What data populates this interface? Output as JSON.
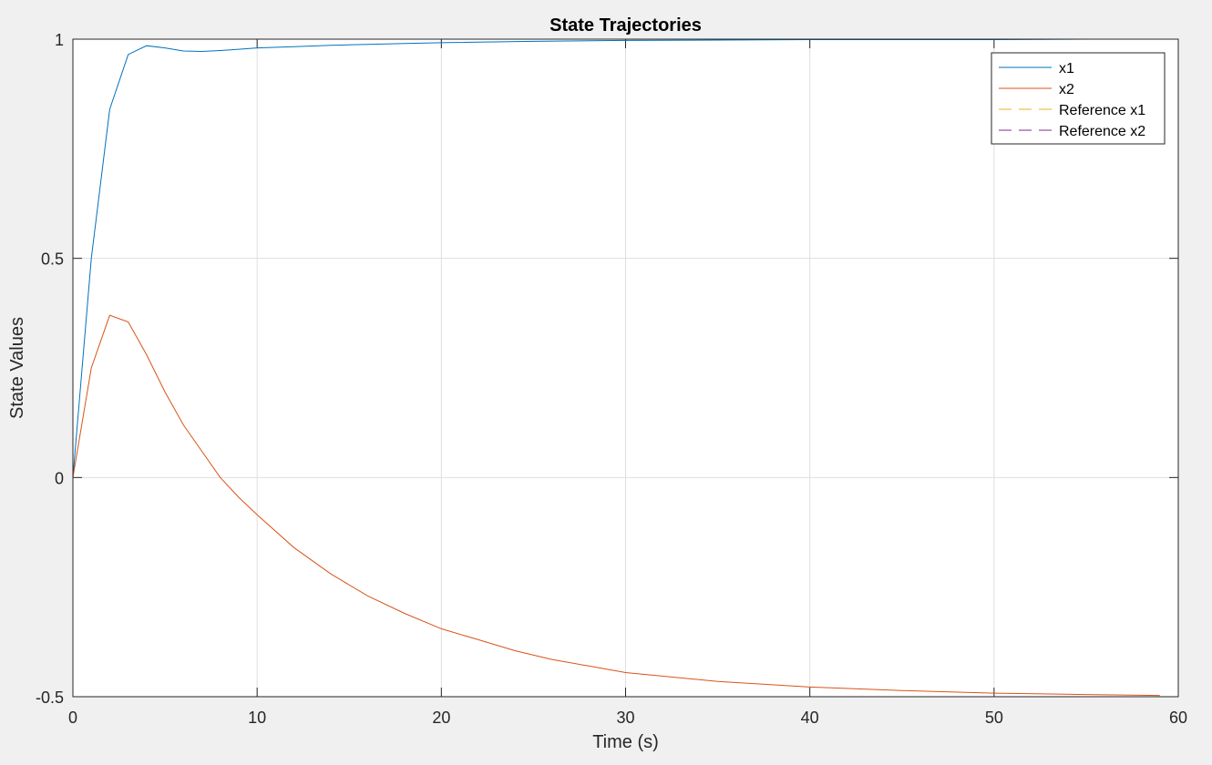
{
  "chart_data": {
    "type": "line",
    "title": "State Trajectories",
    "xlabel": "Time (s)",
    "ylabel": "State Values",
    "xlim": [
      0,
      60
    ],
    "ylim": [
      -0.5,
      1
    ],
    "xticks": [
      0,
      10,
      20,
      30,
      40,
      50,
      60
    ],
    "xtick_labels": [
      "0",
      "10",
      "20",
      "30",
      "40",
      "50",
      "60"
    ],
    "yticks": [
      -0.5,
      0,
      0.5,
      1
    ],
    "ytick_labels": [
      "-0.5",
      "0",
      "0.5",
      "1"
    ],
    "grid": true,
    "legend_position": "top-right",
    "series": [
      {
        "name": "x1",
        "color": "#0072bd",
        "style": "solid",
        "x": [
          0,
          1,
          2,
          3,
          4,
          5,
          6,
          7,
          8,
          9,
          10,
          12,
          14,
          16,
          18,
          20,
          25,
          30,
          35,
          40,
          45,
          50,
          55,
          59
        ],
        "y": [
          0,
          0.5,
          0.84,
          0.965,
          0.985,
          0.98,
          0.973,
          0.972,
          0.974,
          0.977,
          0.98,
          0.983,
          0.986,
          0.988,
          0.99,
          0.992,
          0.995,
          0.997,
          0.998,
          0.999,
          0.999,
          0.999,
          1.0,
          1.0
        ]
      },
      {
        "name": "x2",
        "color": "#d95319",
        "style": "solid",
        "x": [
          0,
          1,
          2,
          3,
          4,
          5,
          6,
          7,
          8,
          9,
          10,
          12,
          14,
          16,
          18,
          20,
          22,
          24,
          26,
          28,
          30,
          35,
          40,
          45,
          50,
          55,
          59
        ],
        "y": [
          0,
          0.25,
          0.37,
          0.355,
          0.28,
          0.195,
          0.12,
          0.06,
          0.0,
          -0.045,
          -0.085,
          -0.16,
          -0.22,
          -0.27,
          -0.31,
          -0.345,
          -0.37,
          -0.395,
          -0.415,
          -0.43,
          -0.445,
          -0.465,
          -0.478,
          -0.486,
          -0.492,
          -0.495,
          -0.497
        ]
      },
      {
        "name": "Reference x1",
        "color": "#edb120",
        "style": "dashed",
        "x": [
          0,
          59
        ],
        "y": [
          1,
          1
        ]
      },
      {
        "name": "Reference x2",
        "color": "#7e2f8e",
        "style": "dashed",
        "x": [
          0,
          59
        ],
        "y": [
          -0.5,
          -0.5
        ]
      }
    ]
  }
}
